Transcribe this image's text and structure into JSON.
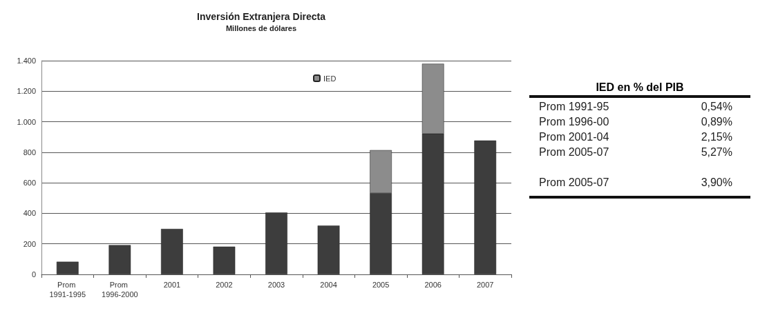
{
  "chart_data": [
    {
      "type": "bar",
      "title": "Inversión Extranjera Directa",
      "subtitle": "Millones de dólares",
      "categories": [
        "Prom 1991-1995",
        "Prom 1996-2000",
        "2001",
        "2002",
        "2003",
        "2004",
        "2005",
        "2006",
        "2007"
      ],
      "stacked": true,
      "series": [
        {
          "color": "#3d3d3d",
          "values": [
            83,
            192,
            298,
            182,
            405,
            320,
            533,
            922,
            877
          ]
        },
        {
          "name": "IED",
          "color": "#8c8c8c",
          "values": [
            null,
            null,
            null,
            null,
            null,
            null,
            281,
            458,
            null
          ]
        }
      ],
      "ylim": [
        0,
        1400
      ],
      "yticks": [
        0,
        200,
        400,
        600,
        800,
        {
          "value": 1000,
          "label": "1.000"
        },
        {
          "value": 1200,
          "label": "1.200"
        },
        {
          "value": 1400,
          "label": "1.400"
        }
      ],
      "grid": "y",
      "legend": "top right"
    },
    {
      "type": "other",
      "title": "IED en % del PIB",
      "categories": [
        "Prom 1991-95",
        "Prom 1996-00",
        "Prom 2001-04",
        "Prom 2005-07",
        "Prom 2005-07"
      ],
      "value_labels": [
        "0,54%",
        "0,89%",
        "2,15%",
        "5,27%",
        "3,90%"
      ]
    }
  ]
}
